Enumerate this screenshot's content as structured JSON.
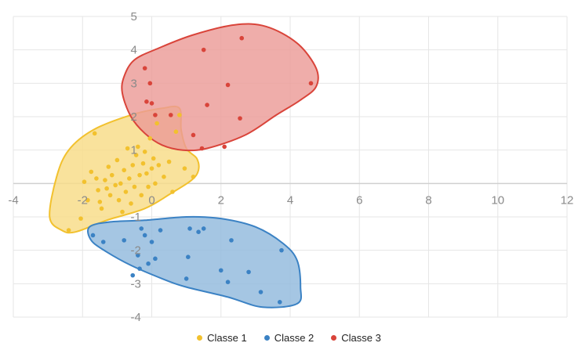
{
  "chart_data": {
    "type": "scatter",
    "title": "",
    "xlabel": "",
    "ylabel": "",
    "xlim": [
      -4,
      12
    ],
    "ylim": [
      -4,
      5
    ],
    "x_ticks": [
      -4,
      -2,
      0,
      2,
      4,
      6,
      8,
      10,
      12
    ],
    "y_ticks": [
      -4,
      -3,
      -2,
      -1,
      0,
      1,
      2,
      3,
      4,
      5
    ],
    "x_tick_labels": [
      "-4",
      "-2",
      "0",
      "2",
      "4",
      "6",
      "8",
      "10",
      "12"
    ],
    "y_tick_labels": [
      "-4",
      "-3",
      "-2",
      "-1",
      "0",
      "1",
      "2",
      "3",
      "4",
      "5"
    ],
    "grid": true,
    "legend_position": "bottom",
    "series": [
      {
        "name": "Classe 1",
        "color": "#f2c12e",
        "fill": "#f8dc86",
        "outline": [
          [
            -2.6,
            -1.4
          ],
          [
            -2.95,
            -1.0
          ],
          [
            -2.75,
            0.2
          ],
          [
            -2.4,
            1.0
          ],
          [
            -1.7,
            1.6
          ],
          [
            -0.6,
            2.05
          ],
          [
            0.3,
            2.25
          ],
          [
            0.8,
            2.25
          ],
          [
            0.85,
            1.6
          ],
          [
            1.0,
            1.05
          ],
          [
            1.3,
            0.75
          ],
          [
            1.35,
            0.4
          ],
          [
            1.15,
            0.1
          ],
          [
            0.55,
            -0.3
          ],
          [
            -0.2,
            -0.75
          ],
          [
            -1.3,
            -1.1
          ],
          [
            -2.2,
            -1.45
          ]
        ],
        "points": [
          [
            -2.4,
            -1.4
          ],
          [
            -2.05,
            -1.05
          ],
          [
            -1.85,
            -0.5
          ],
          [
            -1.95,
            0.05
          ],
          [
            -1.75,
            0.35
          ],
          [
            -1.6,
            0.15
          ],
          [
            -1.55,
            -0.2
          ],
          [
            -1.5,
            -0.55
          ],
          [
            -1.45,
            -0.75
          ],
          [
            -1.35,
            0.1
          ],
          [
            -1.3,
            -0.15
          ],
          [
            -1.25,
            0.5
          ],
          [
            -1.2,
            -0.35
          ],
          [
            -1.15,
            0.25
          ],
          [
            -1.05,
            -0.05
          ],
          [
            -1.0,
            0.7
          ],
          [
            -0.95,
            -0.5
          ],
          [
            -0.9,
            0.0
          ],
          [
            -0.85,
            -0.85
          ],
          [
            -0.8,
            0.4
          ],
          [
            -0.75,
            -0.25
          ],
          [
            -0.7,
            1.05
          ],
          [
            -0.65,
            0.15
          ],
          [
            -0.6,
            -0.6
          ],
          [
            -0.55,
            0.55
          ],
          [
            -0.5,
            -0.1
          ],
          [
            -0.45,
            0.85
          ],
          [
            -0.4,
            1.1
          ],
          [
            -0.35,
            0.25
          ],
          [
            -0.3,
            -0.35
          ],
          [
            -0.25,
            0.6
          ],
          [
            -0.2,
            0.95
          ],
          [
            -0.15,
            0.3
          ],
          [
            -0.1,
            -0.1
          ],
          [
            -0.05,
            1.35
          ],
          [
            0.0,
            0.45
          ],
          [
            0.05,
            0.75
          ],
          [
            0.1,
            0.0
          ],
          [
            0.15,
            1.8
          ],
          [
            0.2,
            0.55
          ],
          [
            0.35,
            0.2
          ],
          [
            0.5,
            0.65
          ],
          [
            0.6,
            -0.25
          ],
          [
            0.7,
            1.55
          ],
          [
            0.8,
            2.05
          ],
          [
            0.95,
            0.45
          ],
          [
            1.2,
            0.2
          ],
          [
            -1.65,
            1.5
          ]
        ]
      },
      {
        "name": "Classe 2",
        "color": "#3b82c4",
        "fill": "#91b9dd",
        "outline": [
          [
            -1.8,
            -1.3
          ],
          [
            -1.75,
            -1.7
          ],
          [
            -1.3,
            -2.05
          ],
          [
            -0.6,
            -2.45
          ],
          [
            0.3,
            -2.85
          ],
          [
            1.0,
            -3.1
          ],
          [
            2.2,
            -3.4
          ],
          [
            3.2,
            -3.7
          ],
          [
            4.2,
            -3.6
          ],
          [
            4.3,
            -3.1
          ],
          [
            4.2,
            -2.3
          ],
          [
            3.8,
            -1.8
          ],
          [
            3.0,
            -1.3
          ],
          [
            2.0,
            -1.05
          ],
          [
            1.0,
            -1.0
          ],
          [
            -0.2,
            -1.1
          ],
          [
            -1.2,
            -1.15
          ]
        ],
        "points": [
          [
            -1.7,
            -1.55
          ],
          [
            -1.4,
            -1.75
          ],
          [
            -0.8,
            -1.7
          ],
          [
            -0.4,
            -2.15
          ],
          [
            -0.3,
            -1.35
          ],
          [
            -0.2,
            -1.55
          ],
          [
            -0.1,
            -2.4
          ],
          [
            0.0,
            -1.75
          ],
          [
            0.1,
            -2.25
          ],
          [
            0.25,
            -1.4
          ],
          [
            -0.35,
            -2.55
          ],
          [
            -0.55,
            -2.75
          ],
          [
            1.0,
            -2.85
          ],
          [
            1.05,
            -2.2
          ],
          [
            1.1,
            -1.35
          ],
          [
            1.35,
            -1.45
          ],
          [
            1.5,
            -1.35
          ],
          [
            2.0,
            -2.6
          ],
          [
            2.2,
            -2.95
          ],
          [
            2.3,
            -1.7
          ],
          [
            2.8,
            -2.65
          ],
          [
            3.15,
            -3.25
          ],
          [
            3.7,
            -3.55
          ],
          [
            3.75,
            -2.0
          ]
        ]
      },
      {
        "name": "Classe 3",
        "color": "#d9443a",
        "fill": "#ec9b97",
        "outline": [
          [
            -0.8,
            3.2
          ],
          [
            -0.5,
            3.7
          ],
          [
            0.2,
            4.05
          ],
          [
            1.2,
            4.45
          ],
          [
            2.4,
            4.75
          ],
          [
            3.3,
            4.7
          ],
          [
            4.2,
            4.2
          ],
          [
            4.75,
            3.45
          ],
          [
            4.75,
            2.9
          ],
          [
            4.3,
            2.5
          ],
          [
            3.6,
            2.05
          ],
          [
            2.7,
            1.45
          ],
          [
            1.6,
            1.05
          ],
          [
            0.9,
            1.0
          ],
          [
            0.3,
            1.15
          ],
          [
            -0.2,
            1.5
          ],
          [
            -0.6,
            2.0
          ],
          [
            -0.85,
            2.7
          ]
        ],
        "points": [
          [
            -0.2,
            3.45
          ],
          [
            -0.05,
            3.0
          ],
          [
            -0.15,
            2.45
          ],
          [
            0.0,
            2.4
          ],
          [
            0.1,
            2.05
          ],
          [
            0.55,
            2.05
          ],
          [
            1.2,
            1.45
          ],
          [
            1.45,
            1.05
          ],
          [
            1.6,
            2.35
          ],
          [
            1.5,
            4.0
          ],
          [
            2.1,
            1.1
          ],
          [
            2.2,
            2.95
          ],
          [
            2.55,
            1.95
          ],
          [
            2.6,
            4.35
          ],
          [
            4.6,
            3.0
          ]
        ]
      }
    ]
  }
}
